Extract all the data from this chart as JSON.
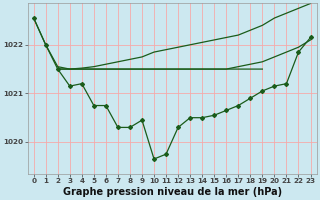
{
  "background_color": "#cce8f0",
  "grid_color": "#f5aaaa",
  "line_color": "#1a5c1a",
  "title": "Graphe pression niveau de la mer (hPa)",
  "hours": [
    0,
    1,
    2,
    3,
    4,
    5,
    6,
    7,
    8,
    9,
    10,
    11,
    12,
    13,
    14,
    15,
    16,
    17,
    18,
    19,
    20,
    21,
    22,
    23
  ],
  "measured_y": [
    1022.55,
    1022.0,
    1021.5,
    1021.15,
    1021.2,
    1020.75,
    1020.75,
    1020.3,
    1020.3,
    1020.45,
    1019.65,
    1019.75,
    1020.3,
    1020.5,
    1020.5,
    1020.55,
    1020.65,
    1020.75,
    1020.9,
    1021.05,
    1021.15,
    1021.2,
    1021.85,
    1022.15
  ],
  "line1_x": [
    0,
    1,
    2,
    3,
    4,
    5,
    6,
    7,
    8,
    9,
    10,
    11,
    12,
    13,
    14,
    15,
    16,
    17,
    18,
    19
  ],
  "line1_y": [
    1022.55,
    1022.0,
    1021.55,
    1021.5,
    1021.5,
    1021.5,
    1021.5,
    1021.5,
    1021.5,
    1021.5,
    1021.5,
    1021.5,
    1021.5,
    1021.5,
    1021.5,
    1021.5,
    1021.5,
    1021.5,
    1021.5,
    1021.5
  ],
  "line2_x": [
    2,
    3,
    4,
    5,
    6,
    7,
    8,
    9,
    10,
    11,
    12,
    13,
    14,
    15,
    16,
    17,
    18,
    19,
    20,
    21,
    22,
    23
  ],
  "line2_y": [
    1021.5,
    1021.5,
    1021.5,
    1021.5,
    1021.5,
    1021.5,
    1021.5,
    1021.5,
    1021.5,
    1021.5,
    1021.5,
    1021.5,
    1021.5,
    1021.5,
    1021.5,
    1021.55,
    1021.6,
    1021.65,
    1021.75,
    1021.85,
    1021.95,
    1022.1
  ],
  "line3_x": [
    2,
    3,
    4,
    5,
    6,
    7,
    8,
    9,
    10,
    11,
    12,
    13,
    14,
    15,
    16,
    17,
    18,
    19,
    20,
    21,
    22,
    23
  ],
  "line3_y": [
    1021.5,
    1021.5,
    1021.52,
    1021.55,
    1021.6,
    1021.65,
    1021.7,
    1021.75,
    1021.85,
    1021.9,
    1021.95,
    1022.0,
    1022.05,
    1022.1,
    1022.15,
    1022.2,
    1022.3,
    1022.4,
    1022.55,
    1022.65,
    1022.75,
    1022.85
  ],
  "ylim": [
    1019.35,
    1022.85
  ],
  "yticks": [
    1020,
    1021,
    1022
  ],
  "title_fontsize": 7.0,
  "tick_fontsize": 5.2
}
